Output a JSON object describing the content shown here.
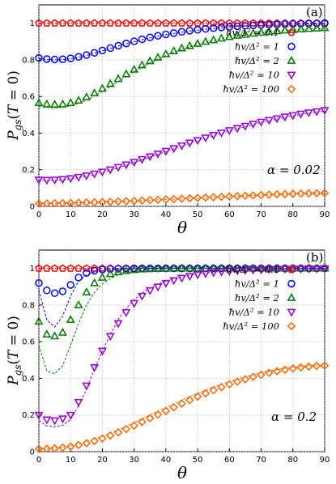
{
  "colors": {
    "0.1": "#ff0000",
    "1": "#0000ff",
    "2": "#007a00",
    "10": "#9400d3",
    "100": "#ff6600",
    "grid": "#b0b0b0"
  },
  "chart_data": [
    {
      "panel": "(a)",
      "type": "scatter",
      "annotation": "α = 0.02",
      "xlabel": "θ",
      "ylabel": "P_gs(T = 0)",
      "xlim": [
        0,
        90
      ],
      "ylim": [
        0,
        1.1
      ],
      "xticks": [
        "0",
        "10",
        "20",
        "30",
        "40",
        "50",
        "60",
        "70",
        "80",
        "90"
      ],
      "yticks": [
        "0",
        "0.2",
        "0.4",
        "0.6",
        "0.8",
        "1"
      ],
      "grid": true,
      "legend_position": "right",
      "legend": [
        "ħv/Δ² = 0.1",
        "ħv/Δ² = 1",
        "ħv/Δ² = 2",
        "ħv/Δ² = 10",
        "ħv/Δ² = 100"
      ],
      "x": [
        0,
        2.5,
        5,
        7.5,
        10,
        12.5,
        15,
        17.5,
        20,
        22.5,
        25,
        27.5,
        30,
        32.5,
        35,
        37.5,
        40,
        42.5,
        45,
        47.5,
        50,
        52.5,
        55,
        57.5,
        60,
        62.5,
        65,
        67.5,
        70,
        72.5,
        75,
        77.5,
        80,
        82.5,
        85,
        87.5,
        90
      ],
      "series": [
        {
          "name": "ħv/Δ² = 0.1",
          "marker": "pentagon",
          "color_key": "0.1",
          "values": [
            1,
            1,
            1,
            1,
            1,
            1,
            1,
            1,
            1,
            1,
            1,
            1,
            1,
            1,
            1,
            1,
            1,
            1,
            1,
            1,
            1,
            1,
            1,
            1,
            1,
            1,
            1,
            1,
            1,
            1,
            1,
            1,
            1,
            1,
            1,
            1,
            1
          ],
          "dashed": [
            1,
            1,
            1,
            1,
            1,
            1,
            1,
            1,
            1,
            1,
            1,
            1,
            1,
            1,
            1,
            1,
            1,
            1,
            1,
            1,
            1,
            1,
            1,
            1,
            1,
            1,
            1,
            1,
            1,
            1,
            1,
            1,
            1,
            1,
            1,
            1,
            1
          ]
        },
        {
          "name": "ħv/Δ² = 1",
          "marker": "circle",
          "color_key": "1",
          "values": [
            0.81,
            0.804,
            0.802,
            0.803,
            0.808,
            0.816,
            0.826,
            0.838,
            0.851,
            0.864,
            0.877,
            0.889,
            0.901,
            0.912,
            0.922,
            0.931,
            0.939,
            0.946,
            0.953,
            0.959,
            0.964,
            0.969,
            0.973,
            0.977,
            0.98,
            0.983,
            0.986,
            0.988,
            0.99,
            0.992,
            0.993,
            0.995,
            0.996,
            0.997,
            0.998,
            0.999,
            1.0
          ],
          "dashed": [
            0.808,
            0.802,
            0.8,
            0.801,
            0.806,
            0.814,
            0.824,
            0.836,
            0.849,
            0.862,
            0.875,
            0.887,
            0.899,
            0.91,
            0.92,
            0.929,
            0.937,
            0.944,
            0.951,
            0.957,
            0.962,
            0.967,
            0.971,
            0.975,
            0.978,
            0.981,
            0.984,
            0.986,
            0.988,
            0.99,
            0.991,
            0.993,
            0.994,
            0.995,
            0.996,
            0.997,
            0.998
          ]
        },
        {
          "name": "ħv/Δ² = 2",
          "marker": "triangle-up",
          "color_key": "2",
          "values": [
            0.565,
            0.558,
            0.556,
            0.558,
            0.565,
            0.578,
            0.596,
            0.618,
            0.643,
            0.669,
            0.696,
            0.722,
            0.747,
            0.771,
            0.793,
            0.813,
            0.831,
            0.848,
            0.863,
            0.876,
            0.888,
            0.899,
            0.908,
            0.917,
            0.925,
            0.932,
            0.938,
            0.944,
            0.949,
            0.953,
            0.957,
            0.961,
            0.964,
            0.967,
            0.97,
            0.972,
            0.974
          ],
          "dashed": [
            0.545,
            0.54,
            0.538,
            0.541,
            0.549,
            0.562,
            0.58,
            0.603,
            0.628,
            0.655,
            0.682,
            0.709,
            0.735,
            0.76,
            0.783,
            0.804,
            0.823,
            0.841,
            0.857,
            0.871,
            0.884,
            0.895,
            0.905,
            0.914,
            0.922,
            0.929,
            0.936,
            0.942,
            0.947,
            0.952,
            0.956,
            0.96,
            0.963,
            0.966,
            0.969,
            0.971,
            0.973
          ]
        },
        {
          "name": "ħv/Δ² = 10",
          "marker": "triangle-down",
          "color_key": "10",
          "values": [
            0.145,
            0.144,
            0.145,
            0.148,
            0.153,
            0.16,
            0.168,
            0.178,
            0.189,
            0.201,
            0.214,
            0.228,
            0.242,
            0.257,
            0.272,
            0.287,
            0.302,
            0.317,
            0.332,
            0.347,
            0.361,
            0.375,
            0.389,
            0.402,
            0.415,
            0.427,
            0.439,
            0.45,
            0.461,
            0.471,
            0.48,
            0.489,
            0.497,
            0.505,
            0.512,
            0.518,
            0.525
          ],
          "dashed": [
            0.142,
            0.141,
            0.142,
            0.145,
            0.15,
            0.157,
            0.165,
            0.175,
            0.186,
            0.198,
            0.211,
            0.225,
            0.239,
            0.254,
            0.269,
            0.284,
            0.299,
            0.314,
            0.329,
            0.344,
            0.358,
            0.372,
            0.386,
            0.399,
            0.412,
            0.424,
            0.436,
            0.447,
            0.458,
            0.468,
            0.477,
            0.486,
            0.494,
            0.502,
            0.509,
            0.515,
            0.522
          ]
        },
        {
          "name": "ħv/Δ² = 100",
          "marker": "diamond",
          "color_key": "100",
          "values": [
            0.015,
            0.016,
            0.017,
            0.018,
            0.019,
            0.02,
            0.021,
            0.022,
            0.024,
            0.025,
            0.027,
            0.028,
            0.03,
            0.032,
            0.034,
            0.036,
            0.038,
            0.04,
            0.042,
            0.044,
            0.046,
            0.048,
            0.05,
            0.052,
            0.054,
            0.056,
            0.058,
            0.06,
            0.062,
            0.064,
            0.066,
            0.067,
            0.069,
            0.07,
            0.071,
            0.072,
            0.073
          ],
          "dashed": [
            0.015,
            0.016,
            0.017,
            0.018,
            0.019,
            0.02,
            0.021,
            0.022,
            0.024,
            0.025,
            0.027,
            0.028,
            0.03,
            0.032,
            0.034,
            0.036,
            0.038,
            0.04,
            0.042,
            0.044,
            0.046,
            0.048,
            0.05,
            0.052,
            0.054,
            0.056,
            0.058,
            0.06,
            0.062,
            0.064,
            0.066,
            0.067,
            0.069,
            0.07,
            0.071,
            0.072,
            0.073
          ]
        }
      ]
    },
    {
      "panel": "(b)",
      "type": "scatter",
      "annotation": "α = 0.2",
      "xlabel": "θ",
      "ylabel": "P_gs(T = 0)",
      "xlim": [
        0,
        90
      ],
      "ylim": [
        0,
        1.1
      ],
      "xticks": [
        "0",
        "10",
        "20",
        "30",
        "40",
        "50",
        "60",
        "70",
        "80",
        "90"
      ],
      "yticks": [
        "0",
        "0.2",
        "0.4",
        "0.6",
        "0.8",
        "1"
      ],
      "grid": true,
      "legend_position": "right",
      "legend": [
        "ħv/Δ² = 0.1",
        "ħv/Δ² = 1",
        "ħv/Δ² = 2",
        "ħv/Δ² = 10",
        "ħv/Δ² = 100"
      ],
      "x": [
        0,
        2.5,
        5,
        7.5,
        10,
        12.5,
        15,
        17.5,
        20,
        22.5,
        25,
        27.5,
        30,
        32.5,
        35,
        37.5,
        40,
        42.5,
        45,
        47.5,
        50,
        52.5,
        55,
        57.5,
        60,
        62.5,
        65,
        67.5,
        70,
        72.5,
        75,
        77.5,
        80,
        82.5,
        85,
        87.5,
        90
      ],
      "series": [
        {
          "name": "ħv/Δ² = 0.1",
          "marker": "pentagon",
          "color_key": "0.1",
          "values": [
            1,
            1,
            1,
            1,
            1,
            1,
            1,
            1,
            1,
            1,
            1,
            1,
            1,
            1,
            1,
            1,
            1,
            1,
            1,
            1,
            1,
            1,
            1,
            1,
            1,
            1,
            1,
            1,
            1,
            1,
            1,
            1,
            1,
            1,
            1,
            1,
            1
          ],
          "dashed": [
            1,
            1,
            1,
            1,
            1,
            1,
            1,
            1,
            1,
            1,
            1,
            1,
            1,
            1,
            1,
            1,
            1,
            1,
            1,
            1,
            1,
            1,
            1,
            1,
            1,
            1,
            1,
            1,
            1,
            1,
            1,
            1,
            1,
            1,
            1,
            1,
            1
          ]
        },
        {
          "name": "ħv/Δ² = 1",
          "marker": "circle",
          "color_key": "1",
          "values": [
            0.92,
            0.88,
            0.865,
            0.875,
            0.91,
            0.95,
            0.975,
            0.988,
            0.994,
            0.997,
            0.998,
            0.999,
            1,
            1,
            1,
            1,
            1,
            1,
            1,
            1,
            1,
            1,
            1,
            1,
            1,
            1,
            1,
            1,
            1,
            1,
            1,
            1,
            1,
            1,
            1,
            1,
            1
          ],
          "dashed": [
            0.88,
            0.72,
            0.68,
            0.74,
            0.85,
            0.93,
            0.965,
            0.982,
            0.99,
            0.995,
            0.997,
            0.998,
            0.999,
            1,
            1,
            1,
            1,
            1,
            1,
            1,
            1,
            1,
            1,
            1,
            1,
            1,
            1,
            1,
            1,
            1,
            1,
            1,
            1,
            1,
            1,
            1,
            1
          ]
        },
        {
          "name": "ħv/Δ² = 2",
          "marker": "triangle-up",
          "color_key": "2",
          "values": [
            0.71,
            0.64,
            0.63,
            0.65,
            0.72,
            0.8,
            0.87,
            0.92,
            0.95,
            0.97,
            0.98,
            0.987,
            0.992,
            0.995,
            0.997,
            0.998,
            0.999,
            1,
            1,
            1,
            1,
            1,
            1,
            1,
            1,
            1,
            1,
            1,
            1,
            1,
            1,
            1,
            1,
            1,
            1,
            1,
            1
          ],
          "dashed": [
            0.58,
            0.44,
            0.425,
            0.47,
            0.58,
            0.7,
            0.8,
            0.87,
            0.915,
            0.945,
            0.965,
            0.977,
            0.985,
            0.99,
            0.994,
            0.996,
            0.998,
            0.999,
            1,
            1,
            1,
            1,
            1,
            1,
            1,
            1,
            1,
            1,
            1,
            1,
            1,
            1,
            1,
            1,
            1,
            1,
            1
          ]
        },
        {
          "name": "ħv/Δ² = 10",
          "marker": "triangle-down",
          "color_key": "10",
          "values": [
            0.2,
            0.175,
            0.17,
            0.18,
            0.2,
            0.27,
            0.36,
            0.46,
            0.55,
            0.63,
            0.7,
            0.76,
            0.81,
            0.85,
            0.88,
            0.9,
            0.92,
            0.935,
            0.948,
            0.958,
            0.966,
            0.972,
            0.978,
            0.982,
            0.985,
            0.988,
            0.99,
            0.992,
            0.993,
            0.995,
            0.996,
            0.997,
            0.997,
            0.998,
            0.999,
            0.999,
            1
          ],
          "dashed": [
            0.17,
            0.14,
            0.135,
            0.145,
            0.175,
            0.25,
            0.34,
            0.45,
            0.55,
            0.64,
            0.72,
            0.78,
            0.83,
            0.865,
            0.893,
            0.915,
            0.93,
            0.943,
            0.953,
            0.962,
            0.969,
            0.975,
            0.98,
            0.983,
            0.986,
            0.989,
            0.991,
            0.993,
            0.994,
            0.995,
            0.996,
            0.997,
            0.998,
            0.998,
            0.999,
            0.999,
            1
          ]
        },
        {
          "name": "ħv/Δ² = 100",
          "marker": "diamond",
          "color_key": "100",
          "values": [
            0.015,
            0.016,
            0.018,
            0.022,
            0.028,
            0.036,
            0.046,
            0.058,
            0.072,
            0.088,
            0.105,
            0.123,
            0.142,
            0.162,
            0.182,
            0.202,
            0.222,
            0.242,
            0.262,
            0.281,
            0.3,
            0.318,
            0.335,
            0.352,
            0.367,
            0.382,
            0.395,
            0.408,
            0.419,
            0.43,
            0.439,
            0.447,
            0.454,
            0.46,
            0.464,
            0.468,
            0.47
          ],
          "dashed": [
            0.015,
            0.017,
            0.02,
            0.025,
            0.032,
            0.042,
            0.054,
            0.068,
            0.084,
            0.101,
            0.12,
            0.139,
            0.159,
            0.18,
            0.2,
            0.221,
            0.241,
            0.261,
            0.281,
            0.3,
            0.318,
            0.336,
            0.352,
            0.368,
            0.383,
            0.396,
            0.409,
            0.42,
            0.431,
            0.44,
            0.448,
            0.455,
            0.461,
            0.465,
            0.469,
            0.471,
            0.473
          ]
        }
      ]
    }
  ]
}
